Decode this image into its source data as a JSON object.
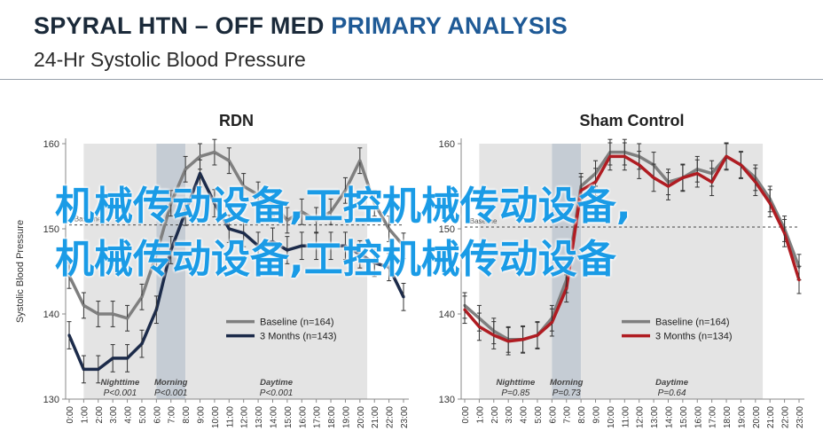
{
  "header": {
    "title_part1": "SPYRAL HTN – OFF MED ",
    "title_part2": "PRIMARY ANALYSIS",
    "subtitle": "24-Hr Systolic Blood Pressure"
  },
  "colors": {
    "baseline": "#7f7f7f",
    "rdn_3months": "#1c2b4a",
    "sham_3months": "#b01c22",
    "night_band": "#e4e4e4",
    "morning_band": "#c5ccd4",
    "day_band": "#e4e4e4",
    "title_accent": "#1f5a96"
  },
  "watermark": {
    "line1": "机械传动设备,工控机械传动设备,",
    "line2": "机械传动设备,工控机械传动设备"
  },
  "chart_data": [
    {
      "type": "line",
      "title": "RDN",
      "ylabel": "Systolic Blood Pressure",
      "ylim": [
        130,
        160
      ],
      "yticks": [
        130,
        140,
        150,
        160
      ],
      "x": [
        "0:00",
        "1:00",
        "2:00",
        "3:00",
        "4:00",
        "5:00",
        "6:00",
        "7:00",
        "8:00",
        "9:00",
        "10:00",
        "11:00",
        "12:00",
        "13:00",
        "14:00",
        "15:00",
        "16:00",
        "17:00",
        "18:00",
        "19:00",
        "20:00",
        "21:00",
        "22:00",
        "23:00"
      ],
      "baseline_label": "Baseline",
      "periods": [
        {
          "name": "Nighttime",
          "p": "P<0.001",
          "start": 1,
          "end": 6
        },
        {
          "name": "Morning",
          "p": "P<0.001",
          "start": 6,
          "end": 8
        },
        {
          "name": "Daytime",
          "p": "P<0.001",
          "start": 8,
          "end": 20.5
        }
      ],
      "legend_position": "lower-right",
      "series": [
        {
          "name": "Baseline (n=164)",
          "color_key": "baseline",
          "values": [
            144.5,
            141,
            140,
            140,
            139.5,
            142,
            147,
            153,
            157,
            158.5,
            159,
            158,
            155,
            154,
            153,
            151,
            152,
            151,
            152,
            154.5,
            158,
            153,
            150,
            148
          ]
        },
        {
          "name": "3 Months (n=143)",
          "color_key": "rdn_3months",
          "values": [
            137.5,
            133.5,
            133.5,
            134.8,
            134.8,
            136.5,
            140.5,
            147.5,
            152,
            156.5,
            153,
            150,
            149.5,
            148,
            148.5,
            147.5,
            148,
            148,
            148,
            148,
            147,
            146,
            145.5,
            142
          ]
        }
      ]
    },
    {
      "type": "line",
      "title": "Sham Control",
      "ylim": [
        130,
        160
      ],
      "yticks": [
        130,
        140,
        150,
        160
      ],
      "x": [
        "0:00",
        "1:00",
        "2:00",
        "3:00",
        "4:00",
        "5:00",
        "6:00",
        "7:00",
        "8:00",
        "9:00",
        "10:00",
        "11:00",
        "12:00",
        "13:00",
        "14:00",
        "15:00",
        "16:00",
        "17:00",
        "18:00",
        "19:00",
        "20:00",
        "21:00",
        "22:00",
        "23:00"
      ],
      "baseline_label": "Baseline",
      "periods": [
        {
          "name": "Nighttime",
          "p": "P=0.85",
          "start": 1,
          "end": 6
        },
        {
          "name": "Morning",
          "p": "P=0.73",
          "start": 6,
          "end": 8
        },
        {
          "name": "Daytime",
          "p": "P=0.64",
          "start": 8,
          "end": 20.5
        }
      ],
      "legend_position": "lower-right",
      "series": [
        {
          "name": "Baseline (n=164)",
          "color_key": "baseline",
          "values": [
            141,
            139.5,
            138,
            137,
            137,
            137.5,
            139.5,
            144,
            155,
            156.5,
            159,
            159,
            158.5,
            157.5,
            155.5,
            156,
            157,
            156.5,
            158.5,
            157.5,
            156,
            153.5,
            150,
            145.5
          ]
        },
        {
          "name": "3 Months (n=134)",
          "color_key": "sham_3months",
          "values": [
            140.5,
            138.5,
            137.5,
            136.8,
            137,
            137.5,
            139,
            143,
            154.5,
            155.5,
            158.5,
            158.5,
            157.5,
            156,
            155,
            156,
            156.5,
            155.5,
            158.5,
            157.5,
            155.5,
            153,
            149.5,
            144
          ]
        }
      ]
    }
  ]
}
